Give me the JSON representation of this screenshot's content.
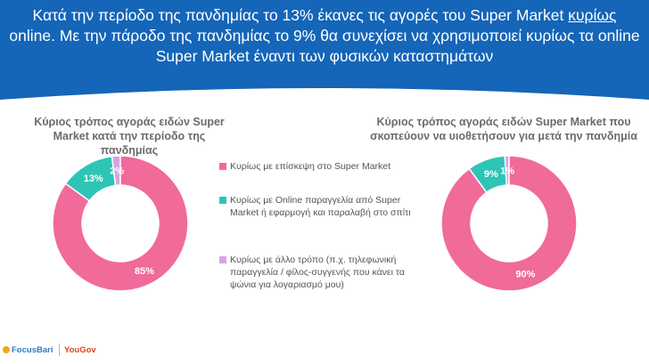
{
  "header": {
    "title_part1": "Κατά την περίοδο της πανδημίας το 13% έκανες τις αγορές του Super Market ",
    "title_underlined": "κυρίως",
    "title_part2": " online. Με την πάροδο της πανδημίας το 9% θα συνεχίσει να χρησιμοποιεί κυρίως τα online Super Market έναντι των φυσικών καταστημάτων",
    "color": "#1565b8"
  },
  "chart_data": [
    {
      "type": "pie",
      "title_line1": "Κύριος τρόπος αγοράς ειδών Super",
      "title_line2": "Market κατά την περίοδο της πανδημίας",
      "categories": [
        "Κυρίως με επίσκεψη στο Super Market",
        "Κυρίως με Online παραγγελία από Super Market ή εφαρμογή και παραλαβή στο σπίτι",
        "Κυρίως με άλλο τρόπο (π.χ. τηλεφωνική παραγγελία / φίλος-συγγενής που κάνει τα ψώνια για λογαριασμό μου)"
      ],
      "values": [
        85,
        13,
        2
      ],
      "labels": [
        "85%",
        "13%",
        "2%"
      ],
      "colors": [
        "#f06a9a",
        "#2ec4b6",
        "#d7a3e0"
      ]
    },
    {
      "type": "pie",
      "title_line1": "Κύριος τρόπος αγοράς ειδών Super Market που",
      "title_line2": "σκοπεύουν να υιοθετήσουν για μετά την πανδημία",
      "categories": [
        "Κυρίως με επίσκεψη στο Super Market",
        "Κυρίως με Online παραγγελία από Super Market ή εφαρμογή και παραλαβή στο σπίτι",
        "Κυρίως με άλλο τρόπο (π.χ. τηλεφωνική παραγγελία / φίλος-συγγενής που κάνει τα ψώνια για λογαριασμό μου)"
      ],
      "values": [
        90,
        9,
        1
      ],
      "labels": [
        "90%",
        "9%",
        "1%"
      ],
      "colors": [
        "#f06a9a",
        "#2ec4b6",
        "#d7a3e0"
      ]
    }
  ],
  "legend": {
    "items": [
      {
        "label": "Κυρίως με επίσκεψη στο Super Market",
        "color": "#f06a9a"
      },
      {
        "label": "Κυρίως με Online παραγγελία από Super Market ή εφαρμογή και παραλαβή στο σπίτι",
        "color": "#2ec4b6"
      },
      {
        "label": "Κυρίως με άλλο τρόπο (π.χ. τηλεφωνική παραγγελία / φίλος-συγγενής που κάνει τα ψώνια για λογαριασμό μου)",
        "color": "#d7a3e0"
      }
    ]
  },
  "footer": {
    "logo1": "FocusBari",
    "logo2": "YouGov"
  }
}
